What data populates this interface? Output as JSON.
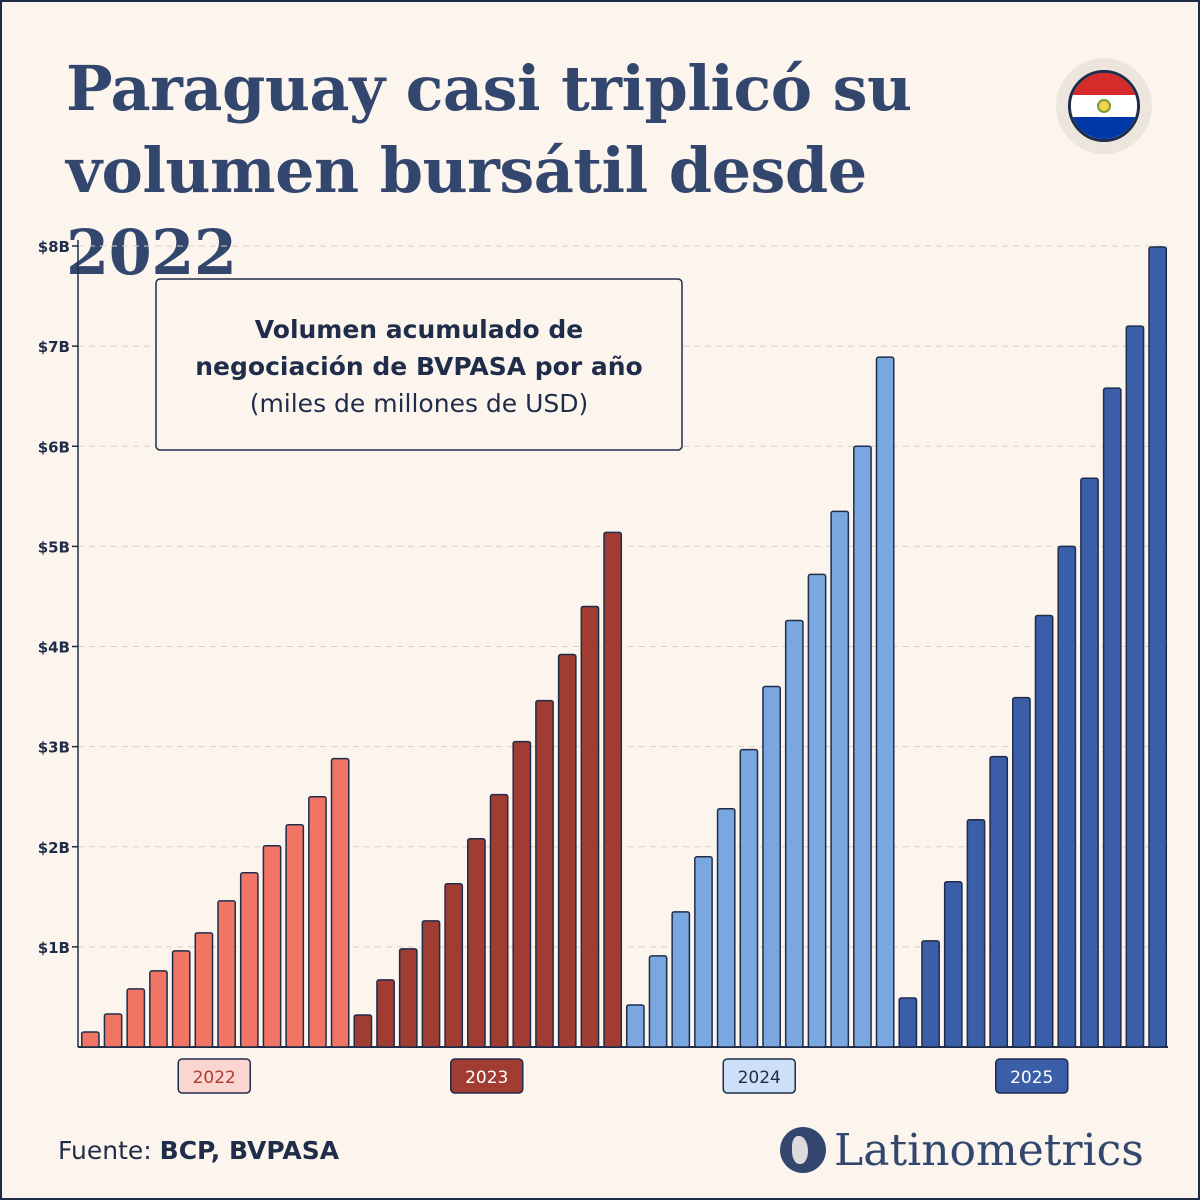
{
  "title": "Paraguay casi triplicó su volumen bursátil desde 2022",
  "flag_icon": "paraguay-flag-icon",
  "source": {
    "prefix": "Fuente:",
    "names": "BCP, BVPASA"
  },
  "brand": {
    "name": "Latinometrics",
    "icon": "latin-america-map-icon"
  },
  "chart_data": {
    "type": "bar",
    "title": "Volumen acumulado de negociación de BVPASA por año",
    "subtitle": "(miles de millones de USD)",
    "xlabel": "",
    "ylabel": "",
    "ylim": [
      0,
      8
    ],
    "y_ticks": [
      1,
      2,
      3,
      4,
      5,
      6,
      7,
      8
    ],
    "y_tick_labels": [
      "$1B",
      "$2B",
      "$3B",
      "$4B",
      "$5B",
      "$6B",
      "$7B",
      "$8B"
    ],
    "grid": true,
    "series": [
      {
        "year_label": "2022",
        "color": "#f07565",
        "label_bg": "#fbd6d0",
        "label_text": "#b03a2e",
        "values": [
          0.15,
          0.33,
          0.58,
          0.76,
          0.96,
          1.14,
          1.46,
          1.74,
          2.01,
          2.22,
          2.5,
          2.88
        ]
      },
      {
        "year_label": "2023",
        "color": "#a03c32",
        "label_bg": "#a03c32",
        "label_text": "#ffffff",
        "values": [
          0.32,
          0.67,
          0.98,
          1.26,
          1.63,
          2.08,
          2.52,
          3.05,
          3.46,
          3.92,
          4.4,
          5.14
        ]
      },
      {
        "year_label": "2024",
        "color": "#7ba7e0",
        "label_bg": "#cde0f7",
        "label_text": "#1f2d4a",
        "values": [
          0.42,
          0.91,
          1.35,
          1.9,
          2.38,
          2.97,
          3.6,
          4.26,
          4.72,
          5.35,
          6.0,
          6.89
        ]
      },
      {
        "year_label": "2025",
        "color": "#3a5ea8",
        "label_bg": "#3a5ea8",
        "label_text": "#ffffff",
        "values": [
          0.49,
          1.06,
          1.65,
          2.27,
          2.9,
          3.49,
          4.31,
          5.0,
          5.68,
          6.58,
          7.2,
          7.99
        ]
      }
    ]
  }
}
